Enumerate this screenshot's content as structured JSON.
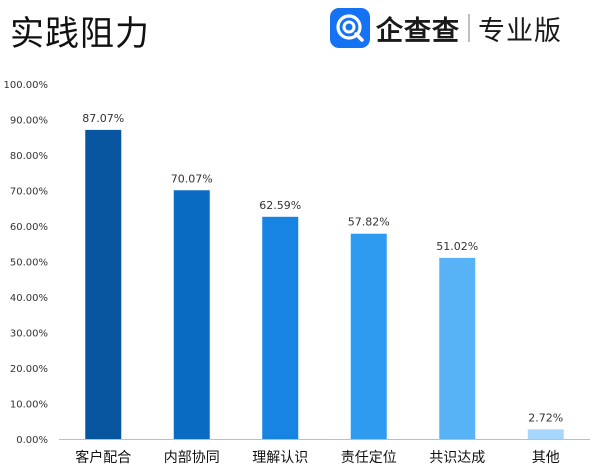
{
  "title": "实践阻力",
  "brand": {
    "name": "企查查",
    "edition": "专业版",
    "logo_icon": "qichacha-logo-icon",
    "logo_color": "#1572f3"
  },
  "chart_data": {
    "type": "bar",
    "categories": [
      "客户配合",
      "内部协同",
      "理解认识",
      "责任定位",
      "共识达成",
      "其他"
    ],
    "values": [
      87.07,
      70.07,
      62.59,
      57.82,
      51.02,
      2.72
    ],
    "value_labels": [
      "87.07%",
      "70.07%",
      "62.59%",
      "57.82%",
      "51.02%",
      "2.72%"
    ],
    "bar_colors": [
      "#08569f",
      "#0a6bc2",
      "#1784e4",
      "#2e9bf0",
      "#58b2f6",
      "#a7d6fb"
    ],
    "ylim": [
      0,
      100
    ],
    "yticks": [
      "0.00%",
      "10.00%",
      "20.00%",
      "30.00%",
      "40.00%",
      "50.00%",
      "60.00%",
      "70.00%",
      "80.00%",
      "90.00%",
      "100.00%"
    ],
    "grid": false,
    "legend": "none",
    "title": "",
    "xlabel": "",
    "ylabel": ""
  }
}
